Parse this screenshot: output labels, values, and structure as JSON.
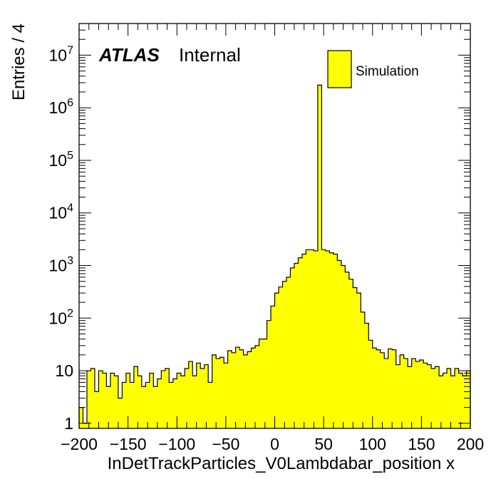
{
  "chart_data": {
    "type": "bar",
    "style": "step-histogram",
    "experiment_label": "ATLAS",
    "status_label": "Internal",
    "xlabel": "InDetTrackParticles_V0Lambdabar_position x",
    "ylabel": "Entries / 4",
    "xlim": [
      -200,
      200
    ],
    "ylim": [
      0.8,
      40000000
    ],
    "y_scale": "log",
    "grid": false,
    "legend_position": "top-right",
    "x_tick_labels": [
      "−200",
      "−150",
      "−100",
      "−50",
      "0",
      "50",
      "100",
      "150",
      "200"
    ],
    "x_ticks": [
      -200,
      -150,
      -100,
      -50,
      0,
      50,
      100,
      150,
      200
    ],
    "y_ticks": [
      1,
      10,
      100,
      1000,
      10000,
      100000,
      1000000,
      10000000
    ],
    "y_tick_labels": [
      {
        "base": "1",
        "exp": ""
      },
      {
        "base": "10",
        "exp": ""
      },
      {
        "base": "10",
        "exp": "2"
      },
      {
        "base": "10",
        "exp": "3"
      },
      {
        "base": "10",
        "exp": "4"
      },
      {
        "base": "10",
        "exp": "5"
      },
      {
        "base": "10",
        "exp": "6"
      },
      {
        "base": "10",
        "exp": "7"
      }
    ],
    "bin_width": 4,
    "bin_start": -200,
    "series": [
      {
        "name": "Simulation",
        "color": "#ffff00",
        "edge_color": "#000000",
        "values": [
          2,
          1,
          10,
          11,
          4,
          10,
          9,
          5,
          9,
          8,
          3,
          6,
          9,
          6,
          12,
          8,
          5,
          6,
          9,
          5,
          7,
          10,
          11,
          6,
          7,
          9,
          8,
          11,
          15,
          8,
          14,
          11,
          13,
          6,
          20,
          17,
          18,
          14,
          24,
          22,
          28,
          25,
          20,
          23,
          27,
          30,
          40,
          40,
          90,
          170,
          300,
          390,
          500,
          600,
          900,
          1100,
          1400,
          1650,
          2000,
          2000,
          1900,
          2700000,
          2000,
          1900,
          1750,
          1650,
          1250,
          1000,
          750,
          550,
          380,
          300,
          130,
          80,
          38,
          27,
          25,
          22,
          17,
          26,
          25,
          13,
          20,
          17,
          12,
          17,
          15,
          16,
          14,
          13,
          11,
          12,
          8,
          9,
          11,
          8,
          11,
          9,
          8,
          10
        ]
      }
    ]
  }
}
